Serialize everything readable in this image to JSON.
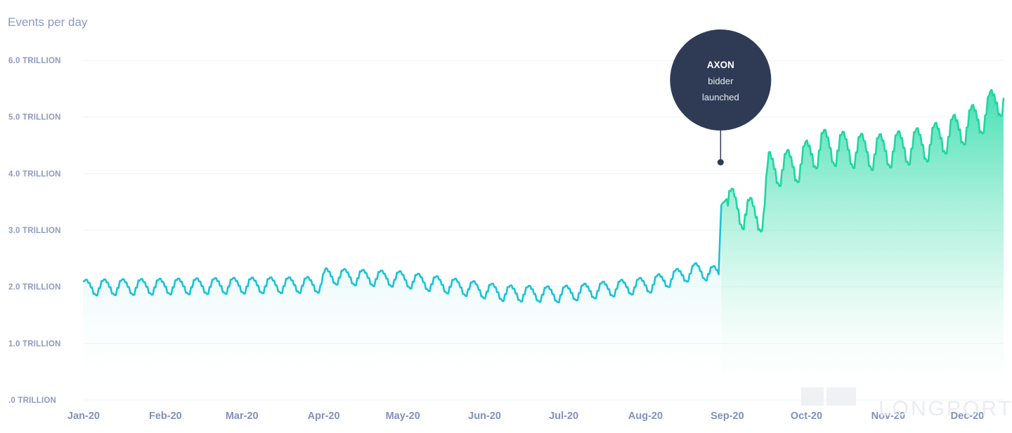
{
  "chart_data": {
    "type": "area",
    "title": "Events per day",
    "ylabel": "Events per day",
    "xlabel": "",
    "ylim": [
      0,
      6.0
    ],
    "y_ticks": [
      {
        "value": 0,
        "label": ".0 TRILLION"
      },
      {
        "value": 1.0,
        "label": "1.0 TRILLION"
      },
      {
        "value": 2.0,
        "label": "2.0 TRILLION"
      },
      {
        "value": 3.0,
        "label": "3.0 TRILLION"
      },
      {
        "value": 4.0,
        "label": "4.0 TRILLION"
      },
      {
        "value": 5.0,
        "label": "5.0 TRILLION"
      },
      {
        "value": 6.0,
        "label": "6.0 TRILLION"
      }
    ],
    "x_ticks": [
      {
        "day": 0,
        "label": "Jan-20"
      },
      {
        "day": 31,
        "label": "Feb-20"
      },
      {
        "day": 60,
        "label": "Mar-20"
      },
      {
        "day": 91,
        "label": "Apr-20"
      },
      {
        "day": 121,
        "label": "May-20"
      },
      {
        "day": 152,
        "label": "Jun-20"
      },
      {
        "day": 182,
        "label": "Jul-20"
      },
      {
        "day": 213,
        "label": "Aug-20"
      },
      {
        "day": 244,
        "label": "Sep-20"
      },
      {
        "day": 274,
        "label": "Oct-20"
      },
      {
        "day": 305,
        "label": "Nov-20"
      },
      {
        "day": 335,
        "label": "Dec-20"
      }
    ],
    "x_range_days": [
      0,
      349
    ],
    "series": [
      {
        "name": "Events per day",
        "unit": "trillion",
        "note": "key points; the script adds a weekly oscillation between them",
        "points": [
          {
            "day": 0,
            "value": 2.0
          },
          {
            "day": 90,
            "value": 2.05
          },
          {
            "day": 92,
            "value": 2.2
          },
          {
            "day": 120,
            "value": 2.15
          },
          {
            "day": 160,
            "value": 1.9
          },
          {
            "day": 180,
            "value": 1.88
          },
          {
            "day": 215,
            "value": 2.05
          },
          {
            "day": 233,
            "value": 2.3
          },
          {
            "day": 241,
            "value": 2.22
          },
          {
            "day": 242,
            "value": 3.55
          },
          {
            "day": 255,
            "value": 3.25
          },
          {
            "day": 258,
            "value": 3.35
          },
          {
            "day": 260,
            "value": 4.1
          },
          {
            "day": 270,
            "value": 4.15
          },
          {
            "day": 280,
            "value": 4.5
          },
          {
            "day": 300,
            "value": 4.4
          },
          {
            "day": 320,
            "value": 4.55
          },
          {
            "day": 330,
            "value": 4.75
          },
          {
            "day": 340,
            "value": 5.0
          },
          {
            "day": 349,
            "value": 5.4
          }
        ]
      }
    ],
    "annotations": [
      {
        "day": 242,
        "value": 4.2,
        "lines": [
          "AXON",
          "bidder",
          "launched"
        ]
      }
    ],
    "grid": true,
    "line_color": "#18c3d6",
    "line_color_end": "#1fd6a1",
    "fill_color_start": "#d8f4f7",
    "fill_color_end": "#2bdba7",
    "annotation_color": "#2f3b55"
  },
  "watermark": "LONGPORT"
}
